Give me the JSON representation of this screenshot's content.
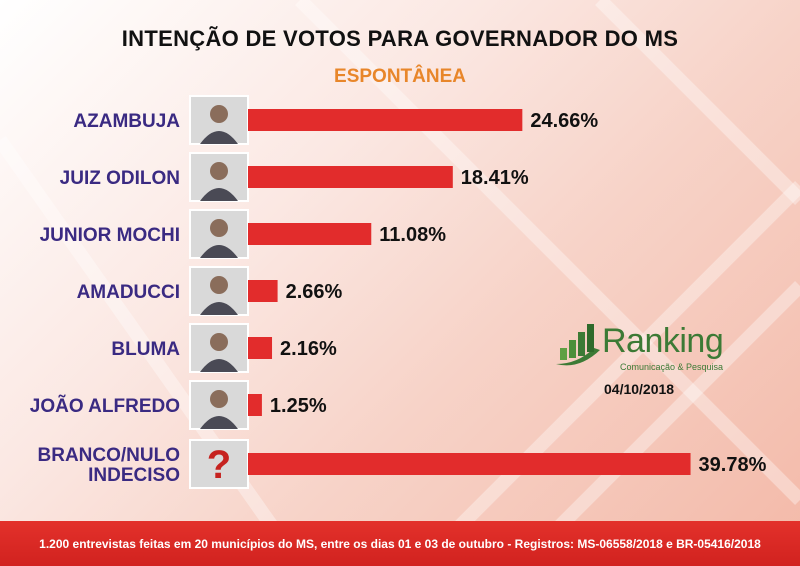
{
  "header": {
    "title": "INTENÇÃO DE VOTOS PARA GOVERNADOR DO MS",
    "subtitle": "ESPONTÂNEA"
  },
  "chart_data": {
    "type": "bar",
    "orientation": "horizontal",
    "title": "INTENÇÃO DE VOTOS PARA GOVERNADOR DO MS",
    "subtitle": "ESPONTÂNEA",
    "categories": [
      "AZAMBUJA",
      "JUIZ ODILON",
      "JUNIOR MOCHI",
      "AMADUCCI",
      "BLUMA",
      "JOÃO ALFREDO",
      "BRANCO/NULO INDECISO"
    ],
    "category_lines": [
      [
        "AZAMBUJA"
      ],
      [
        "JUIZ ODILON"
      ],
      [
        "JUNIOR MOCHI"
      ],
      [
        "AMADUCCI"
      ],
      [
        "BLUMA"
      ],
      [
        "JOÃO ALFREDO"
      ],
      [
        "BRANCO/NULO",
        "INDECISO"
      ]
    ],
    "values": [
      24.66,
      18.41,
      11.08,
      2.66,
      2.16,
      1.25,
      39.78
    ],
    "value_labels": [
      "24.66%",
      "18.41%",
      "11.08%",
      "2.66%",
      "2.16%",
      "1.25%",
      "39.78%"
    ],
    "xlim": [
      0,
      40
    ],
    "grid": false,
    "legend": "none",
    "bar_color": "#e22c2c"
  },
  "logo": {
    "name": "Ranking",
    "tagline": "Comunicação & Pesquisa",
    "color": "#3c7a35"
  },
  "date": "04/10/2018",
  "footer": {
    "text": "1.200 entrevistas feitas em 20 municípios do MS, entre os dias 01 e 03 de outubro - Registros: MS-06558/2018 e BR-05416/2018"
  }
}
